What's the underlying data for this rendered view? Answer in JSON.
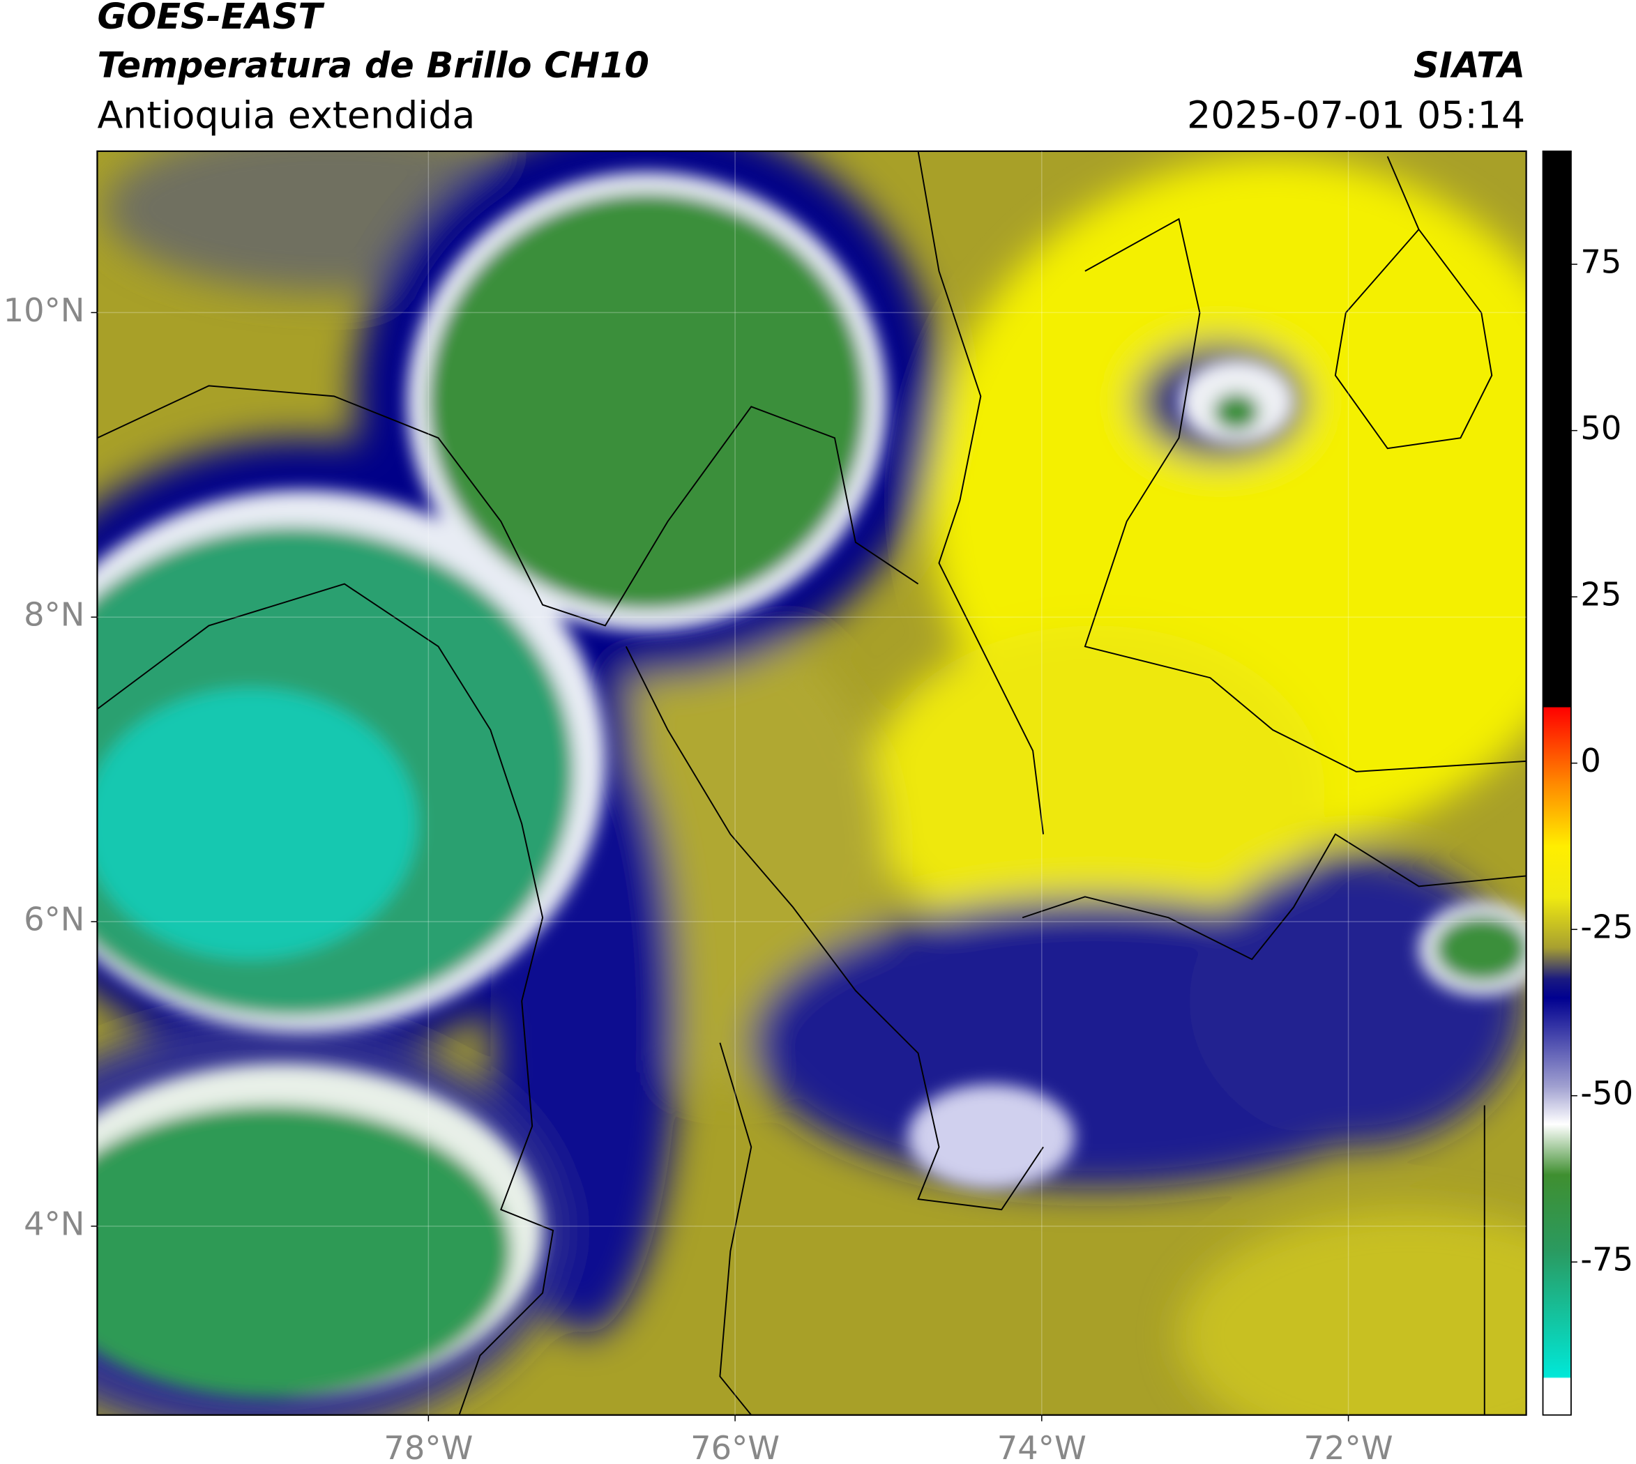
{
  "header": {
    "title": "GOES-EAST",
    "subtitle": "Temperatura de Brillo CH10",
    "region": "Antioquia extendida",
    "source": "SIATA",
    "datetime": "2025-07-01 05:14"
  },
  "map": {
    "xlim": [
      -80.16,
      -70.84
    ],
    "ylim": [
      2.76,
      11.06
    ],
    "xticks": [
      {
        "value": -78,
        "label": "78°W"
      },
      {
        "value": -76,
        "label": "76°W"
      },
      {
        "value": -74,
        "label": "74°W"
      },
      {
        "value": -72,
        "label": "72°W"
      }
    ],
    "yticks": [
      {
        "value": 4,
        "label": "4°N"
      },
      {
        "value": 6,
        "label": "6°N"
      },
      {
        "value": 8,
        "label": "8°N"
      },
      {
        "value": 10,
        "label": "10°N"
      }
    ],
    "grid": true
  },
  "colorbar": {
    "lim": [
      -98,
      92
    ],
    "ticks": [
      -75,
      -50,
      -25,
      0,
      25,
      50,
      75
    ]
  }
}
